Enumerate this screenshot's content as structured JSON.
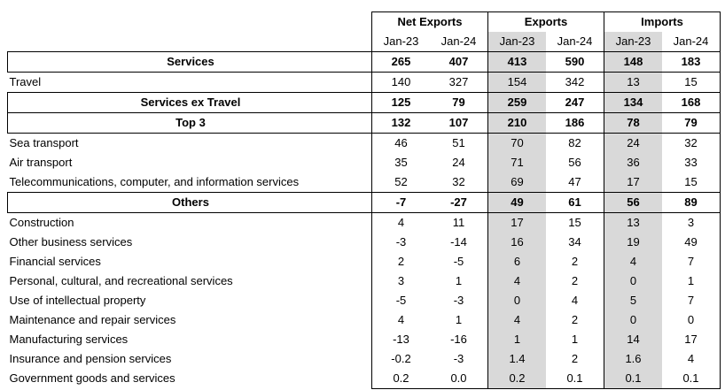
{
  "header": {
    "groups": [
      "Net Exports",
      "Exports",
      "Imports"
    ],
    "periods": [
      "Jan-23",
      "Jan-24",
      "Jan-23",
      "Jan-24",
      "Jan-23",
      "Jan-24"
    ]
  },
  "rows": [
    {
      "label": "Services",
      "values": [
        "265",
        "407",
        "413",
        "590",
        "148",
        "183"
      ]
    },
    {
      "label": "Travel",
      "values": [
        "140",
        "327",
        "154",
        "342",
        "13",
        "15"
      ]
    },
    {
      "label": "Services ex Travel",
      "values": [
        "125",
        "79",
        "259",
        "247",
        "134",
        "168"
      ]
    },
    {
      "label": "Top 3",
      "values": [
        "132",
        "107",
        "210",
        "186",
        "78",
        "79"
      ]
    },
    {
      "label": "Sea transport",
      "values": [
        "46",
        "51",
        "70",
        "82",
        "24",
        "32"
      ]
    },
    {
      "label": "Air transport",
      "values": [
        "35",
        "24",
        "71",
        "56",
        "36",
        "33"
      ]
    },
    {
      "label": "Telecommunications, computer, and information services",
      "values": [
        "52",
        "32",
        "69",
        "47",
        "17",
        "15"
      ]
    },
    {
      "label": "Others",
      "values": [
        "-7",
        "-27",
        "49",
        "61",
        "56",
        "89"
      ]
    },
    {
      "label": "Construction",
      "values": [
        "4",
        "11",
        "17",
        "15",
        "13",
        "3"
      ]
    },
    {
      "label": "Other business services",
      "values": [
        "-3",
        "-14",
        "16",
        "34",
        "19",
        "49"
      ]
    },
    {
      "label": "Financial services",
      "values": [
        "2",
        "-5",
        "6",
        "2",
        "4",
        "7"
      ]
    },
    {
      "label": "Personal, cultural, and recreational services",
      "values": [
        "3",
        "1",
        "4",
        "2",
        "0",
        "1"
      ]
    },
    {
      "label": "Use of intellectual property",
      "values": [
        "-5",
        "-3",
        "0",
        "4",
        "5",
        "7"
      ]
    },
    {
      "label": "Maintenance and repair services",
      "values": [
        "4",
        "1",
        "4",
        "2",
        "0",
        "0"
      ]
    },
    {
      "label": "Manufacturing services",
      "values": [
        "-13",
        "-16",
        "1",
        "1",
        "14",
        "17"
      ]
    },
    {
      "label": "Insurance and pension services",
      "values": [
        "-0.2",
        "-3",
        "1.4",
        "2",
        "1.6",
        "4"
      ]
    },
    {
      "label": "Government goods and services",
      "values": [
        "0.2",
        "0.0",
        "0.2",
        "0.1",
        "0.1",
        "0.1"
      ]
    }
  ]
}
